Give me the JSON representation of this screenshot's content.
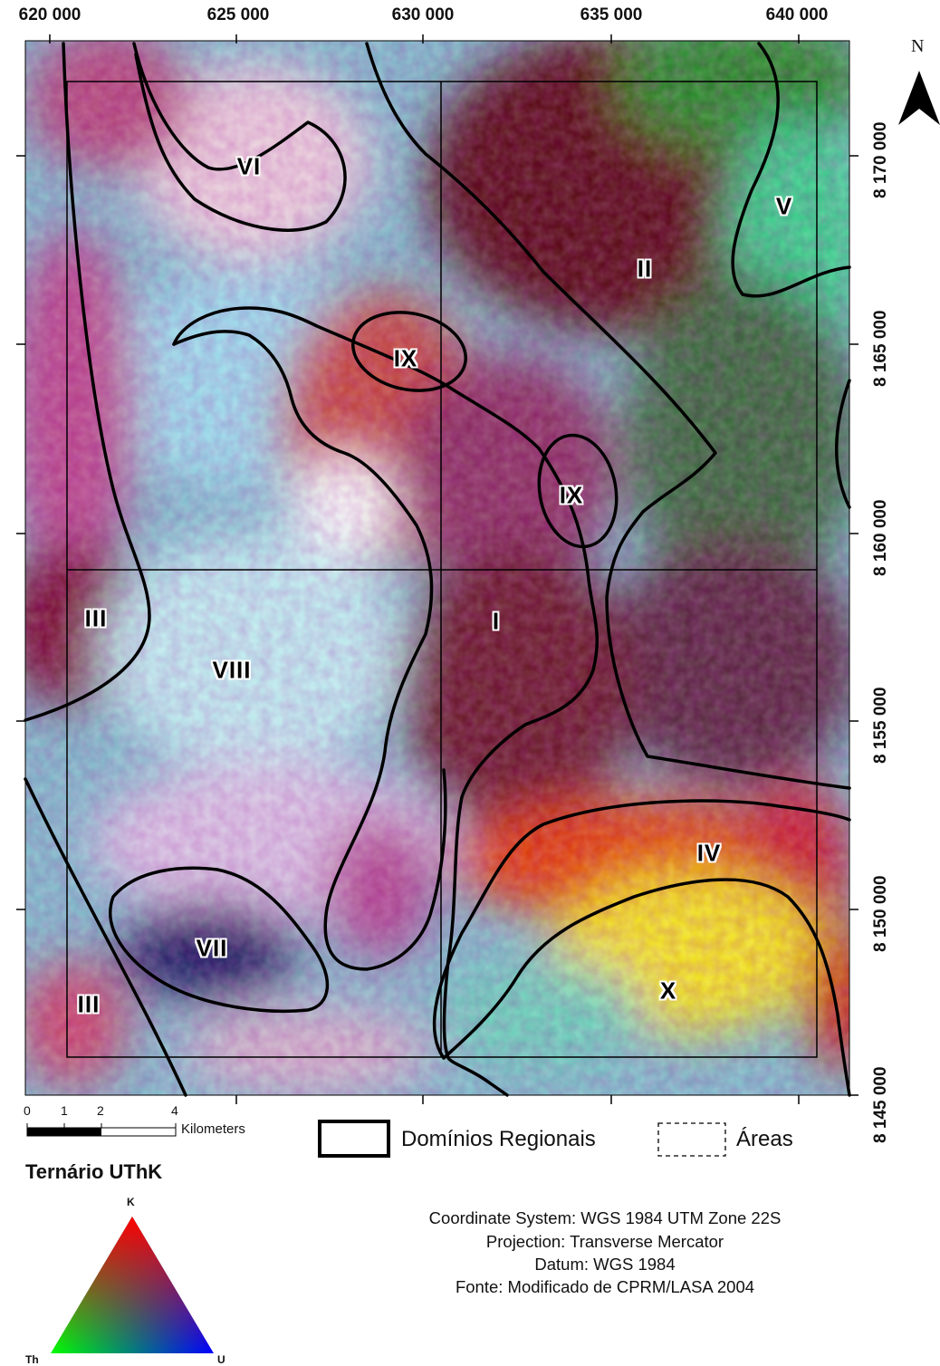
{
  "axes": {
    "easting_ticks": [
      "620 000",
      "625 000",
      "630 000",
      "635 000",
      "640 000"
    ],
    "northing_ticks": [
      "8 170 000",
      "8 165 000",
      "8 160 000",
      "8 155 000",
      "8 150 000",
      "8 145 000"
    ]
  },
  "north_arrow": {
    "label": "N",
    "icon": "north-arrow-icon"
  },
  "domains": [
    {
      "id": "I",
      "label": "I"
    },
    {
      "id": "II",
      "label": "II"
    },
    {
      "id": "III-north",
      "label": "III"
    },
    {
      "id": "III-south",
      "label": "III"
    },
    {
      "id": "IV",
      "label": "IV"
    },
    {
      "id": "V",
      "label": "V"
    },
    {
      "id": "VI",
      "label": "VI"
    },
    {
      "id": "VII",
      "label": "VII"
    },
    {
      "id": "VIII",
      "label": "VIII"
    },
    {
      "id": "IX-north",
      "label": "IX"
    },
    {
      "id": "IX-south",
      "label": "IX"
    },
    {
      "id": "X",
      "label": "X"
    }
  ],
  "scale_bar": {
    "ticks": [
      "0",
      "1",
      "2",
      "4"
    ],
    "unit": "Kilometers"
  },
  "legend": {
    "regional_domains": "Domínios Regionais",
    "areas": "Áreas",
    "ternary_title": "Ternário UThK",
    "ternary_vertices": {
      "top": "K",
      "left": "Th",
      "right": "U"
    },
    "ternary_colors": {
      "K": "#ff0000",
      "Th": "#00ff00",
      "U": "#0000ff"
    }
  },
  "credits": {
    "coordinate_system": "Coordinate System: WGS 1984 UTM Zone 22S",
    "projection": "Projection: Transverse Mercator",
    "datum": "Datum: WGS 1984",
    "source": "Fonte: Modificado de CPRM/LASA 2004"
  }
}
